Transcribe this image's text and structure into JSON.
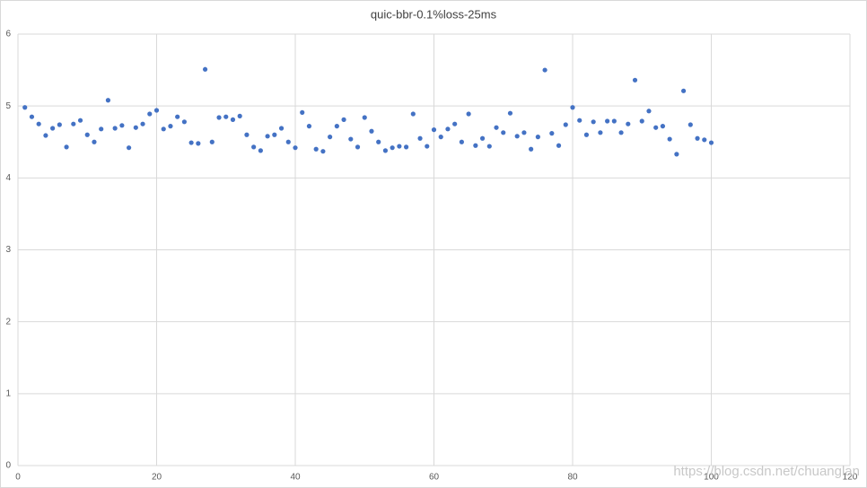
{
  "chart_data": {
    "type": "scatter",
    "title": "quic-bbr-0.1%loss-25ms",
    "x": [
      1,
      2,
      3,
      4,
      5,
      6,
      7,
      8,
      9,
      10,
      11,
      12,
      13,
      14,
      15,
      16,
      17,
      18,
      19,
      20,
      21,
      22,
      23,
      24,
      25,
      26,
      27,
      28,
      29,
      30,
      31,
      32,
      33,
      34,
      35,
      36,
      37,
      38,
      39,
      40,
      41,
      42,
      43,
      44,
      45,
      46,
      47,
      48,
      49,
      50,
      51,
      52,
      53,
      54,
      55,
      56,
      57,
      58,
      59,
      60,
      61,
      62,
      63,
      64,
      65,
      66,
      67,
      68,
      69,
      70,
      71,
      72,
      73,
      74,
      75,
      76,
      77,
      78,
      79,
      80,
      81,
      82,
      83,
      84,
      85,
      86,
      87,
      88,
      89,
      90,
      91,
      92,
      93,
      94,
      95,
      96,
      97,
      98,
      99,
      100
    ],
    "values": [
      4.98,
      4.85,
      4.75,
      4.59,
      4.69,
      4.74,
      4.43,
      4.75,
      4.8,
      4.6,
      4.5,
      4.68,
      5.08,
      4.69,
      4.73,
      4.42,
      4.7,
      4.75,
      4.89,
      4.94,
      4.68,
      4.72,
      4.85,
      4.78,
      4.49,
      4.48,
      5.51,
      4.5,
      4.84,
      4.85,
      4.81,
      4.86,
      4.6,
      4.43,
      4.38,
      4.58,
      4.6,
      4.69,
      4.5,
      4.42,
      4.91,
      4.72,
      4.4,
      4.37,
      4.57,
      4.72,
      4.81,
      4.54,
      4.43,
      4.84,
      4.65,
      4.5,
      4.38,
      4.42,
      4.44,
      4.43,
      4.89,
      4.55,
      4.44,
      4.67,
      4.57,
      4.68,
      4.75,
      4.5,
      4.89,
      4.45,
      4.55,
      4.44,
      4.7,
      4.63,
      4.9,
      4.58,
      4.63,
      4.4,
      4.57,
      5.5,
      4.62,
      4.45,
      4.74,
      4.98,
      4.8,
      4.6,
      4.78,
      4.63,
      4.79,
      4.79,
      4.63,
      4.75,
      5.36,
      4.79,
      4.93,
      4.7,
      4.72,
      4.54,
      4.33,
      5.21,
      4.74,
      4.55,
      4.53,
      4.49
    ],
    "color": "#4472c4",
    "xlim": [
      0,
      120
    ],
    "xticks": [
      0,
      20,
      40,
      60,
      80,
      100,
      120
    ],
    "ylim": [
      0,
      6
    ],
    "yticks": [
      0,
      1,
      2,
      3,
      4,
      5,
      6
    ],
    "grid": true,
    "watermark": "https://blog.csdn.net/chuanglan"
  }
}
